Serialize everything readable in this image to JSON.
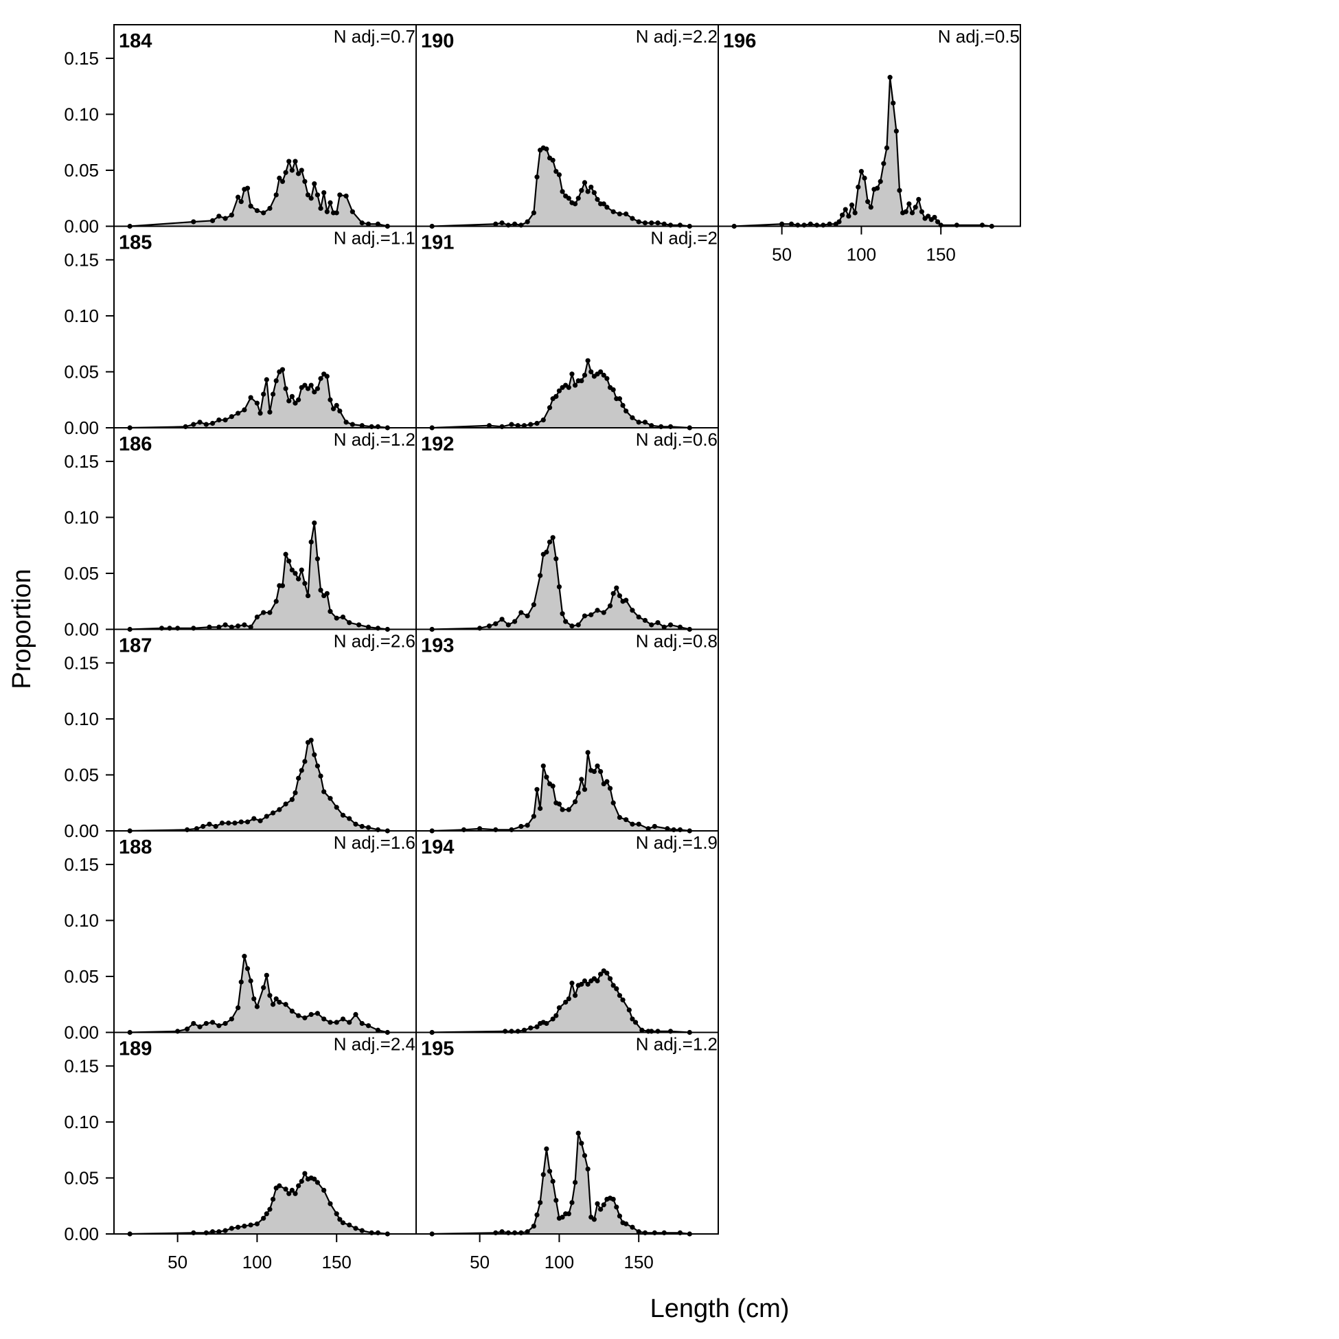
{
  "chart_data": {
    "type": "area",
    "layout": "panel grid, 3 columns filled top-to-bottom, 6 rows",
    "xlabel": "Length (cm)",
    "ylabel": "Proportion",
    "xlim": [
      10,
      200
    ],
    "ylim": [
      0,
      0.18
    ],
    "xticks": [
      50,
      100,
      150
    ],
    "yticks": [
      0.0,
      0.05,
      0.1,
      0.15
    ],
    "ytick_labels": [
      "0.00",
      "0.05",
      "0.10",
      "0.15"
    ],
    "fill_color": "#c8c8c8",
    "line_color": "#000000",
    "note_prefix": "N adj.=",
    "panels": [
      {
        "label": "184",
        "note": "0.7",
        "column": 0,
        "row": 0,
        "x": [
          20,
          60,
          72,
          76,
          80,
          84,
          88,
          90,
          92,
          94,
          96,
          100,
          104,
          108,
          112,
          114,
          116,
          118,
          120,
          122,
          124,
          126,
          128,
          130,
          132,
          134,
          136,
          138,
          140,
          142,
          144,
          146,
          148,
          150,
          152,
          156,
          160,
          166,
          170,
          176,
          182
        ],
        "y": [
          0,
          0.004,
          0.005,
          0.009,
          0.007,
          0.01,
          0.026,
          0.022,
          0.033,
          0.034,
          0.018,
          0.014,
          0.012,
          0.016,
          0.028,
          0.043,
          0.04,
          0.048,
          0.058,
          0.05,
          0.058,
          0.047,
          0.05,
          0.04,
          0.028,
          0.025,
          0.038,
          0.028,
          0.016,
          0.03,
          0.013,
          0.021,
          0.012,
          0.012,
          0.028,
          0.027,
          0.013,
          0.003,
          0.002,
          0.002,
          0
        ]
      },
      {
        "label": "185",
        "note": "1.1",
        "column": 0,
        "row": 1,
        "x": [
          20,
          55,
          60,
          64,
          68,
          72,
          76,
          80,
          84,
          88,
          92,
          96,
          100,
          102,
          104,
          106,
          108,
          110,
          112,
          114,
          116,
          118,
          120,
          122,
          124,
          126,
          128,
          130,
          132,
          134,
          136,
          138,
          140,
          142,
          144,
          146,
          148,
          150,
          152,
          156,
          160,
          166,
          172,
          176,
          182
        ],
        "y": [
          0,
          0.001,
          0.003,
          0.005,
          0.003,
          0.004,
          0.007,
          0.007,
          0.01,
          0.013,
          0.016,
          0.027,
          0.022,
          0.013,
          0.03,
          0.043,
          0.014,
          0.03,
          0.042,
          0.05,
          0.052,
          0.035,
          0.024,
          0.028,
          0.022,
          0.025,
          0.036,
          0.038,
          0.035,
          0.038,
          0.032,
          0.035,
          0.044,
          0.048,
          0.046,
          0.025,
          0.017,
          0.02,
          0.015,
          0.005,
          0.003,
          0.002,
          0.001,
          0.001,
          0
        ]
      },
      {
        "label": "186",
        "note": "1.2",
        "column": 0,
        "row": 2,
        "x": [
          20,
          40,
          45,
          50,
          60,
          70,
          76,
          80,
          84,
          88,
          92,
          96,
          100,
          104,
          108,
          112,
          114,
          116,
          118,
          120,
          122,
          124,
          126,
          128,
          130,
          132,
          134,
          136,
          138,
          140,
          142,
          144,
          146,
          150,
          154,
          158,
          164,
          170,
          176,
          182
        ],
        "y": [
          0,
          0.001,
          0.001,
          0.001,
          0.001,
          0.002,
          0.002,
          0.004,
          0.002,
          0.003,
          0.004,
          0.002,
          0.011,
          0.015,
          0.015,
          0.025,
          0.039,
          0.039,
          0.067,
          0.061,
          0.053,
          0.05,
          0.045,
          0.053,
          0.041,
          0.03,
          0.078,
          0.095,
          0.063,
          0.035,
          0.03,
          0.032,
          0.016,
          0.01,
          0.011,
          0.006,
          0.004,
          0.002,
          0.001,
          0
        ]
      },
      {
        "label": "187",
        "note": "2.6",
        "column": 0,
        "row": 3,
        "x": [
          20,
          56,
          62,
          66,
          70,
          74,
          78,
          82,
          86,
          90,
          94,
          98,
          102,
          106,
          110,
          114,
          118,
          122,
          124,
          126,
          128,
          130,
          132,
          134,
          136,
          138,
          140,
          142,
          146,
          150,
          154,
          158,
          162,
          166,
          170,
          176,
          182
        ],
        "y": [
          0,
          0.001,
          0.002,
          0.004,
          0.006,
          0.004,
          0.007,
          0.007,
          0.007,
          0.008,
          0.008,
          0.011,
          0.009,
          0.013,
          0.016,
          0.019,
          0.024,
          0.028,
          0.034,
          0.047,
          0.054,
          0.062,
          0.079,
          0.081,
          0.068,
          0.058,
          0.049,
          0.035,
          0.029,
          0.021,
          0.014,
          0.011,
          0.006,
          0.004,
          0.003,
          0.001,
          0
        ]
      },
      {
        "label": "188",
        "note": "1.6",
        "column": 0,
        "row": 4,
        "x": [
          20,
          50,
          56,
          60,
          64,
          68,
          72,
          76,
          80,
          84,
          88,
          90,
          92,
          94,
          96,
          98,
          100,
          104,
          106,
          108,
          110,
          112,
          114,
          118,
          122,
          126,
          130,
          134,
          138,
          142,
          146,
          150,
          154,
          158,
          162,
          166,
          170,
          176,
          182
        ],
        "y": [
          0,
          0.001,
          0.003,
          0.008,
          0.005,
          0.008,
          0.009,
          0.006,
          0.008,
          0.012,
          0.022,
          0.045,
          0.068,
          0.057,
          0.046,
          0.03,
          0.023,
          0.04,
          0.051,
          0.033,
          0.025,
          0.03,
          0.027,
          0.025,
          0.019,
          0.015,
          0.013,
          0.016,
          0.017,
          0.012,
          0.009,
          0.009,
          0.012,
          0.009,
          0.016,
          0.008,
          0.006,
          0.002,
          0
        ]
      },
      {
        "label": "189",
        "note": "2.4",
        "column": 0,
        "row": 5,
        "x": [
          20,
          60,
          68,
          72,
          76,
          80,
          84,
          88,
          92,
          96,
          100,
          104,
          106,
          108,
          110,
          112,
          114,
          118,
          120,
          122,
          124,
          126,
          128,
          130,
          132,
          134,
          136,
          138,
          142,
          146,
          150,
          152,
          154,
          158,
          162,
          166,
          172,
          176,
          182
        ],
        "y": [
          0,
          0.001,
          0.001,
          0.002,
          0.002,
          0.003,
          0.005,
          0.006,
          0.007,
          0.008,
          0.009,
          0.014,
          0.018,
          0.022,
          0.031,
          0.041,
          0.043,
          0.04,
          0.036,
          0.039,
          0.036,
          0.043,
          0.047,
          0.054,
          0.049,
          0.05,
          0.049,
          0.046,
          0.039,
          0.027,
          0.018,
          0.013,
          0.01,
          0.008,
          0.005,
          0.003,
          0.001,
          0.001,
          0
        ]
      },
      {
        "label": "190",
        "note": "2.2",
        "column": 1,
        "row": 0,
        "x": [
          20,
          60,
          64,
          68,
          72,
          76,
          80,
          84,
          86,
          88,
          90,
          92,
          94,
          96,
          98,
          100,
          102,
          104,
          106,
          108,
          110,
          112,
          114,
          116,
          118,
          120,
          122,
          124,
          126,
          128,
          130,
          134,
          138,
          142,
          146,
          150,
          154,
          158,
          162,
          166,
          170,
          176,
          182
        ],
        "y": [
          0,
          0.002,
          0.003,
          0.001,
          0.002,
          0.001,
          0.004,
          0.012,
          0.044,
          0.068,
          0.07,
          0.069,
          0.061,
          0.059,
          0.049,
          0.046,
          0.031,
          0.027,
          0.025,
          0.021,
          0.02,
          0.025,
          0.032,
          0.039,
          0.031,
          0.035,
          0.03,
          0.024,
          0.02,
          0.02,
          0.017,
          0.013,
          0.011,
          0.011,
          0.007,
          0.004,
          0.003,
          0.003,
          0.003,
          0.002,
          0.001,
          0.001,
          0
        ]
      },
      {
        "label": "191",
        "note": "2",
        "column": 1,
        "row": 1,
        "x": [
          20,
          56,
          64,
          70,
          74,
          78,
          82,
          86,
          90,
          94,
          96,
          98,
          100,
          102,
          104,
          106,
          108,
          110,
          112,
          114,
          116,
          118,
          120,
          122,
          124,
          126,
          128,
          130,
          132,
          134,
          136,
          138,
          140,
          142,
          146,
          150,
          154,
          158,
          164,
          170,
          182
        ],
        "y": [
          0,
          0.002,
          0.001,
          0.003,
          0.002,
          0.002,
          0.003,
          0.004,
          0.007,
          0.018,
          0.026,
          0.028,
          0.033,
          0.036,
          0.038,
          0.036,
          0.048,
          0.038,
          0.042,
          0.042,
          0.047,
          0.06,
          0.05,
          0.046,
          0.048,
          0.05,
          0.047,
          0.044,
          0.036,
          0.034,
          0.026,
          0.026,
          0.02,
          0.015,
          0.009,
          0.005,
          0.005,
          0.002,
          0.001,
          0.001,
          0
        ]
      },
      {
        "label": "192",
        "note": "0.6",
        "column": 1,
        "row": 2,
        "x": [
          20,
          50,
          56,
          60,
          64,
          68,
          72,
          76,
          80,
          84,
          88,
          90,
          92,
          94,
          96,
          98,
          100,
          102,
          104,
          108,
          112,
          116,
          120,
          124,
          128,
          132,
          134,
          136,
          138,
          140,
          142,
          146,
          150,
          154,
          158,
          162,
          166,
          170,
          176,
          182
        ],
        "y": [
          0,
          0.001,
          0.003,
          0.005,
          0.009,
          0.004,
          0.007,
          0.015,
          0.012,
          0.022,
          0.048,
          0.067,
          0.069,
          0.078,
          0.082,
          0.063,
          0.038,
          0.014,
          0.007,
          0.003,
          0.004,
          0.012,
          0.013,
          0.017,
          0.015,
          0.021,
          0.032,
          0.037,
          0.03,
          0.025,
          0.026,
          0.017,
          0.011,
          0.008,
          0.004,
          0.006,
          0.002,
          0.004,
          0.002,
          0
        ]
      },
      {
        "label": "193",
        "note": "0.8",
        "column": 1,
        "row": 3,
        "x": [
          20,
          40,
          50,
          60,
          70,
          76,
          80,
          84,
          86,
          88,
          90,
          92,
          94,
          96,
          98,
          100,
          102,
          106,
          110,
          112,
          114,
          116,
          118,
          120,
          122,
          124,
          126,
          128,
          130,
          132,
          134,
          138,
          142,
          146,
          150,
          156,
          160,
          168,
          172,
          176,
          182
        ],
        "y": [
          0,
          0.001,
          0.002,
          0.001,
          0.001,
          0.004,
          0.005,
          0.013,
          0.037,
          0.02,
          0.058,
          0.048,
          0.042,
          0.04,
          0.025,
          0.024,
          0.019,
          0.019,
          0.026,
          0.034,
          0.046,
          0.037,
          0.07,
          0.054,
          0.053,
          0.058,
          0.053,
          0.042,
          0.044,
          0.038,
          0.025,
          0.012,
          0.01,
          0.006,
          0.006,
          0.002,
          0.004,
          0.002,
          0.001,
          0.001,
          0
        ]
      },
      {
        "label": "194",
        "note": "1.9",
        "column": 1,
        "row": 4,
        "x": [
          20,
          66,
          70,
          74,
          78,
          82,
          86,
          88,
          90,
          92,
          96,
          98,
          100,
          104,
          106,
          108,
          110,
          112,
          114,
          116,
          118,
          120,
          122,
          124,
          126,
          128,
          130,
          132,
          134,
          136,
          138,
          140,
          144,
          146,
          148,
          152,
          156,
          158,
          162,
          170,
          182
        ],
        "y": [
          0,
          0.001,
          0.001,
          0.001,
          0.002,
          0.004,
          0.005,
          0.008,
          0.009,
          0.008,
          0.012,
          0.015,
          0.022,
          0.027,
          0.03,
          0.044,
          0.033,
          0.042,
          0.043,
          0.046,
          0.043,
          0.046,
          0.048,
          0.046,
          0.052,
          0.055,
          0.053,
          0.048,
          0.042,
          0.039,
          0.033,
          0.029,
          0.02,
          0.012,
          0.009,
          0.002,
          0.001,
          0.001,
          0.001,
          0.001,
          0
        ]
      },
      {
        "label": "195",
        "note": "1.2",
        "column": 1,
        "row": 5,
        "x": [
          20,
          60,
          64,
          68,
          72,
          76,
          80,
          84,
          86,
          88,
          90,
          92,
          94,
          96,
          98,
          100,
          102,
          104,
          106,
          108,
          110,
          112,
          114,
          116,
          118,
          120,
          122,
          124,
          126,
          128,
          130,
          132,
          134,
          136,
          138,
          140,
          142,
          146,
          150,
          154,
          160,
          166,
          176,
          182
        ],
        "y": [
          0,
          0.001,
          0.002,
          0.001,
          0.001,
          0.001,
          0.002,
          0.007,
          0.017,
          0.028,
          0.053,
          0.076,
          0.056,
          0.047,
          0.03,
          0.014,
          0.015,
          0.018,
          0.018,
          0.028,
          0.046,
          0.09,
          0.081,
          0.07,
          0.058,
          0.015,
          0.013,
          0.027,
          0.022,
          0.026,
          0.031,
          0.032,
          0.031,
          0.024,
          0.016,
          0.01,
          0.009,
          0.006,
          0.002,
          0.001,
          0.001,
          0.001,
          0.001,
          0
        ]
      },
      {
        "label": "196",
        "note": "0.5",
        "column": 2,
        "row": 0,
        "x": [
          20,
          50,
          56,
          60,
          64,
          68,
          72,
          76,
          80,
          84,
          86,
          88,
          90,
          92,
          94,
          96,
          98,
          100,
          102,
          104,
          106,
          108,
          110,
          112,
          114,
          116,
          118,
          120,
          122,
          124,
          126,
          128,
          130,
          132,
          134,
          136,
          138,
          140,
          142,
          144,
          146,
          148,
          150,
          160,
          176,
          182
        ],
        "y": [
          0,
          0.002,
          0.002,
          0.001,
          0.001,
          0.002,
          0.001,
          0.001,
          0.002,
          0.002,
          0.004,
          0.01,
          0.015,
          0.009,
          0.019,
          0.012,
          0.035,
          0.049,
          0.043,
          0.022,
          0.017,
          0.033,
          0.034,
          0.04,
          0.056,
          0.07,
          0.133,
          0.11,
          0.085,
          0.032,
          0.012,
          0.013,
          0.02,
          0.012,
          0.017,
          0.024,
          0.013,
          0.007,
          0.009,
          0.006,
          0.008,
          0.004,
          0.001,
          0.001,
          0.001,
          0
        ]
      }
    ]
  }
}
